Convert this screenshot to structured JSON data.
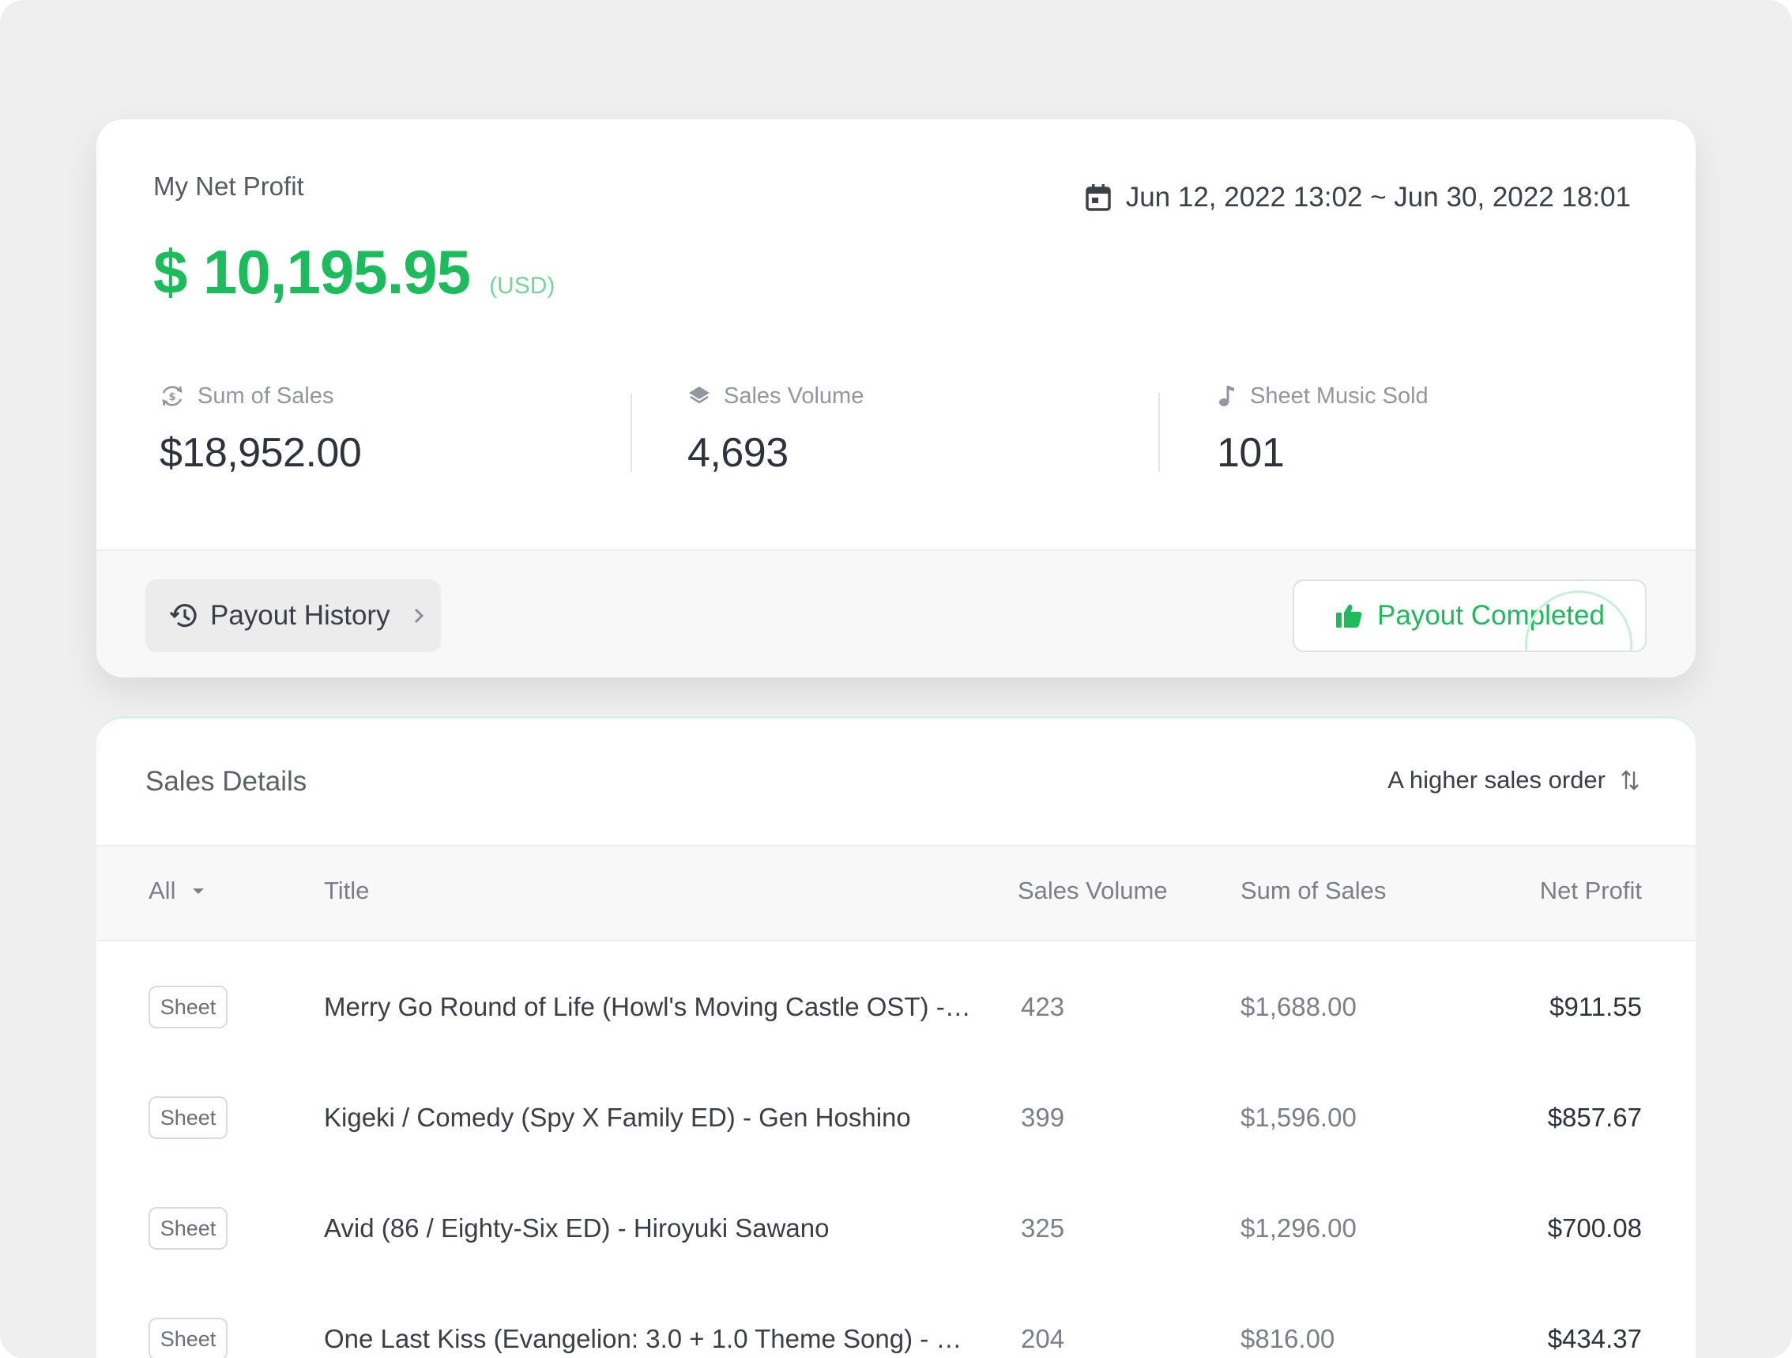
{
  "summary": {
    "title": "My Net Profit",
    "amount": "$ 10,195.95",
    "currency": "(USD)",
    "date_range": "Jun 12, 2022 13:02 ~ Jun 30, 2022 18:01",
    "stats": [
      {
        "label": "Sum of Sales",
        "value": "$18,952.00",
        "icon": "dollar-cycle-icon"
      },
      {
        "label": "Sales Volume",
        "value": "4,693",
        "icon": "layers-icon"
      },
      {
        "label": "Sheet Music Sold",
        "value": "101",
        "icon": "music-note-icon"
      }
    ],
    "payout_history_label": "Payout History",
    "payout_status_label": "Payout Completed"
  },
  "details": {
    "title": "Sales Details",
    "sort_label": "A higher sales order",
    "columns": {
      "filter": "All",
      "title": "Title",
      "volume": "Sales Volume",
      "sum": "Sum of Sales",
      "net": "Net Profit"
    },
    "rows": [
      {
        "type": "Sheet",
        "title": "Merry Go Round of Life (Howl's Moving Castle OST) - H...",
        "volume": "423",
        "sum": "$1,688.00",
        "net": "$911.55"
      },
      {
        "type": "Sheet",
        "title": "Kigeki / Comedy (Spy X Family ED) - Gen Hoshino",
        "volume": "399",
        "sum": "$1,596.00",
        "net": "$857.67"
      },
      {
        "type": "Sheet",
        "title": "Avid (86 / Eighty-Six ED) - Hiroyuki Sawano",
        "volume": "325",
        "sum": "$1,296.00",
        "net": "$700.08"
      },
      {
        "type": "Sheet",
        "title": "One Last Kiss (Evangelion: 3.0 + 1.0 Theme Song) - Hik...",
        "volume": "204",
        "sum": "$816.00",
        "net": "$434.37"
      }
    ]
  },
  "colors": {
    "accent": "#1cbb5c",
    "background": "#efefef"
  }
}
